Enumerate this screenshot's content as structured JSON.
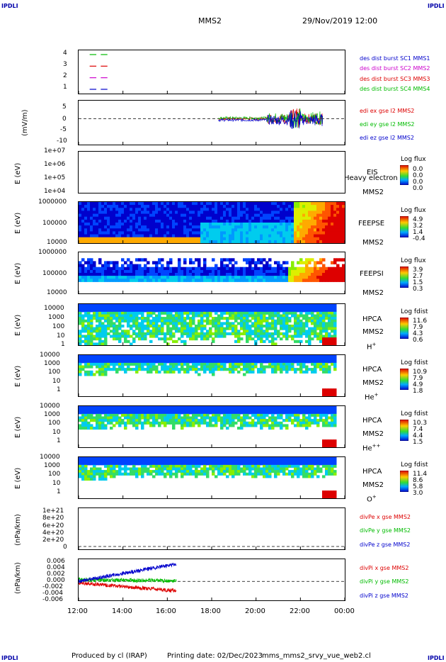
{
  "logos": [
    "IPDLI",
    "IPDLI",
    "IPDLI",
    "IPDLI"
  ],
  "header": {
    "spacecraft": "MMS2",
    "datetime": "29/Nov/2019 12:00"
  },
  "footer": {
    "produced": "Produced by cl (IRAP)",
    "printing": "Printing date: 02/Dec/2023",
    "script": "mms_mms2_srvy_vue_web2.cl"
  },
  "colors": {
    "red": "#dd0000",
    "green": "#00bb00",
    "blue": "#0000cc",
    "magenta": "#cc00cc"
  },
  "chart_data": {
    "type": "stacked-timeseries",
    "x_ticks": [
      "12:00",
      "14:00",
      "16:00",
      "18:00",
      "20:00",
      "22:00",
      "00:00"
    ],
    "x_range_hours": [
      12,
      24
    ],
    "panels": [
      {
        "id": "burst",
        "type": "line",
        "yticks": [
          "4",
          "3",
          "2",
          "1"
        ],
        "legend": [
          {
            "label": "des dist burst SC1 MMS1",
            "color": "#0000cc"
          },
          {
            "label": "des dist burst SC2 MMS2",
            "color": "#cc00cc"
          },
          {
            "label": "des dist burst SC3 MMS3",
            "color": "#dd0000"
          },
          {
            "label": "des dist burst SC4 MMS4",
            "color": "#00bb00"
          }
        ],
        "series": [
          {
            "level": 4,
            "color": "#00bb00",
            "segments": [
              [
                12.5,
                12.8
              ],
              [
                13.0,
                13.3
              ]
            ]
          },
          {
            "level": 3,
            "color": "#dd0000",
            "segments": [
              [
                12.5,
                12.8
              ],
              [
                13.0,
                13.3
              ]
            ]
          },
          {
            "level": 2,
            "color": "#cc00cc",
            "segments": [
              [
                12.5,
                12.8
              ],
              [
                13.0,
                13.3
              ]
            ]
          },
          {
            "level": 1,
            "color": "#0000cc",
            "segments": [
              [
                12.5,
                12.8
              ],
              [
                13.0,
                13.3
              ]
            ]
          }
        ]
      },
      {
        "id": "edi",
        "type": "line",
        "ylabel": "(mV/m)",
        "yticks": [
          "5",
          "0",
          "-5",
          "-10"
        ],
        "ylim": [
          -10,
          7
        ],
        "legend": [
          {
            "label": "edi ex gse l2 MMS2",
            "color": "#dd0000"
          },
          {
            "label": "edi ey gse l2 MMS2",
            "color": "#00bb00"
          },
          {
            "label": "edi ez gse l2 MMS2",
            "color": "#0000cc"
          }
        ],
        "data_hours": [
          18.3,
          23.0
        ]
      },
      {
        "id": "eis",
        "type": "heatmap",
        "ylabel": "E (eV)",
        "yticks": [
          "1e+07",
          "1e+06",
          "1e+05",
          "1e+04"
        ],
        "instrument": [
          "EIS",
          "MMS2"
        ],
        "overflow_label": "Heavy electron to",
        "cbar_title": "Log flux",
        "cbar_ticks": [
          "0.0",
          "0.0",
          "0.0",
          "0.0"
        ]
      },
      {
        "id": "feepse",
        "type": "heatmap",
        "ylabel": "E (eV)",
        "yticks": [
          "1000000",
          "100000",
          "10000"
        ],
        "instrument": [
          "FEEPSE",
          "MMS2"
        ],
        "cbar_title": "Log flux",
        "cbar_ticks": [
          "4.9",
          "3.2",
          "1.4",
          "-0.4"
        ]
      },
      {
        "id": "feepsi",
        "type": "heatmap",
        "ylabel": "E (eV)",
        "yticks": [
          "1000000",
          "100000",
          "10000"
        ],
        "instrument": [
          "FEEPSI",
          "MMS2"
        ],
        "cbar_title": "Log flux",
        "cbar_ticks": [
          "3.9",
          "2.7",
          "1.5",
          "0.3"
        ]
      },
      {
        "id": "hpca_h",
        "type": "heatmap",
        "ylabel": "E (eV)",
        "yticks": [
          "10000",
          "1000",
          "100",
          "10",
          "1"
        ],
        "instrument": [
          "HPCA",
          "MMS2"
        ],
        "species": [
          "H",
          "+"
        ],
        "cbar_title": "Log fdist",
        "cbar_ticks": [
          "11.6",
          "7.9",
          "4.3",
          "0.6"
        ]
      },
      {
        "id": "hpca_he",
        "type": "heatmap",
        "ylabel": "E (eV)",
        "yticks": [
          "10000",
          "1000",
          "100",
          "10",
          "1"
        ],
        "instrument": [
          "HPCA",
          "MMS2"
        ],
        "species": [
          "He",
          "+"
        ],
        "cbar_title": "Log fdist",
        "cbar_ticks": [
          "10.9",
          "7.9",
          "4.9",
          "1.8"
        ]
      },
      {
        "id": "hpca_hepp",
        "type": "heatmap",
        "ylabel": "E (eV)",
        "yticks": [
          "10000",
          "1000",
          "100",
          "10",
          "1"
        ],
        "instrument": [
          "HPCA",
          "MMS2"
        ],
        "species": [
          "He",
          "++"
        ],
        "cbar_title": "Log fdist",
        "cbar_ticks": [
          "10.3",
          "7.4",
          "4.4",
          "1.5"
        ]
      },
      {
        "id": "hpca_o",
        "type": "heatmap",
        "ylabel": "E (eV)",
        "yticks": [
          "10000",
          "1000",
          "100",
          "10",
          "1"
        ],
        "instrument": [
          "HPCA",
          "MMS2"
        ],
        "species": [
          "O",
          "+"
        ],
        "cbar_title": "Log fdist",
        "cbar_ticks": [
          "11.4",
          "8.6",
          "5.8",
          "3.0"
        ]
      },
      {
        "id": "divpe",
        "type": "line",
        "ylabel": "(nPa/km)",
        "yticks": [
          "1e+21",
          "8e+20",
          "6e+20",
          "4e+20",
          "2e+20",
          "0"
        ],
        "legend": [
          {
            "label": "divPe x gse MMS2",
            "color": "#dd0000"
          },
          {
            "label": "divPe y gse MMS2",
            "color": "#00bb00"
          },
          {
            "label": "divPe z gse MMS2",
            "color": "#0000cc"
          }
        ]
      },
      {
        "id": "divpi",
        "type": "line",
        "ylabel": "(nPa/km)",
        "yticks": [
          "0.006",
          "0.004",
          "0.002",
          "0.000",
          "-0.002",
          "-0.004",
          "-0.006"
        ],
        "ylim": [
          -0.006,
          0.007
        ],
        "legend": [
          {
            "label": "divPi x gse MMS2",
            "color": "#dd0000"
          },
          {
            "label": "divPi y gse MMS2",
            "color": "#00bb00"
          },
          {
            "label": "divPi z gse MMS2",
            "color": "#0000cc"
          }
        ],
        "data_hours": [
          12.0,
          16.4
        ],
        "series_trend": {
          "z": {
            "start": 0.0,
            "end": 0.0055
          },
          "y": {
            "start": 0.0005,
            "end": 0.0002
          },
          "x": {
            "start": -0.0005,
            "end": -0.003
          }
        }
      }
    ]
  }
}
